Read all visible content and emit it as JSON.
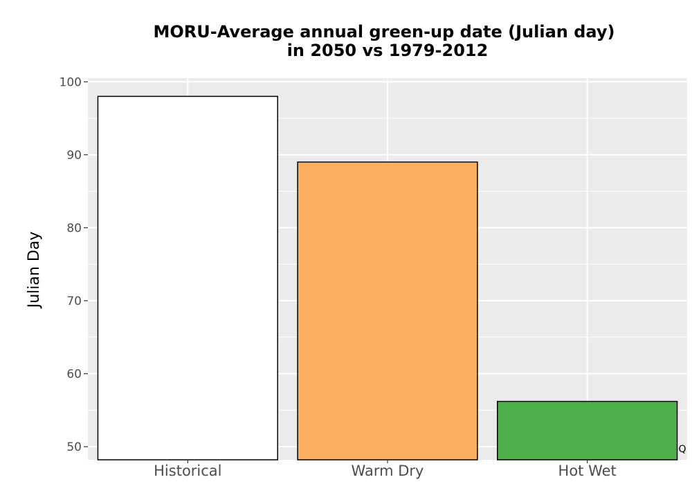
{
  "chart_data": {
    "type": "bar",
    "title": "MORU-Average annual green-up date (Julian day)",
    "subtitle": "in 2050 vs 1979-2012",
    "xlabel": "",
    "ylabel": "Julian Day",
    "categories": [
      "Historical",
      "Warm Dry",
      "Hot Wet"
    ],
    "values": [
      98,
      89,
      56.2
    ],
    "bar_colors": [
      "#ffffff",
      "#fdae61",
      "#4daf4a"
    ],
    "yticks": [
      50,
      60,
      70,
      80,
      90,
      100
    ],
    "ylim": [
      48.2,
      100.5
    ],
    "grid": true,
    "panel_background": "#ebebeb",
    "grid_color": "#ffffff",
    "corner_label": "Q"
  }
}
